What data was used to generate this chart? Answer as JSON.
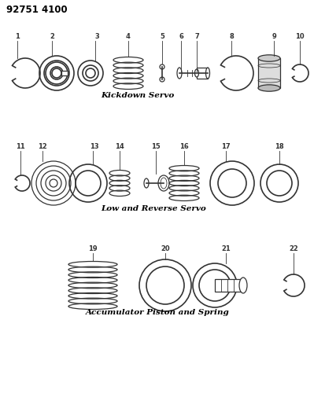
{
  "title_code": "92751 4100",
  "background_color": "#ffffff",
  "line_color": "#333333",
  "section1_label": "Kickdown Servo",
  "section2_label": "Low and Reverse Servo",
  "section3_label": "Accumulator Piston and Spring",
  "fig_width": 3.99,
  "fig_height": 5.33,
  "dpi": 100
}
